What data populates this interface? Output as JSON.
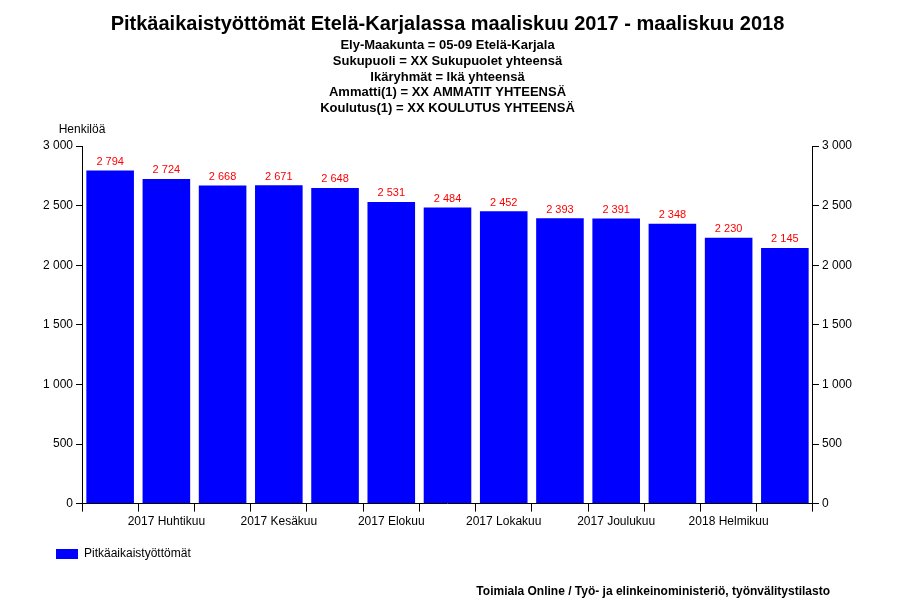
{
  "chart_data": {
    "type": "bar",
    "title": "Pitkäaikaistyöttömät Etelä-Karjalassa maaliskuu 2017 - maaliskuu 2018",
    "subtitle": [
      "Ely-Maakunta = 05-09 Etelä-Karjala",
      "Sukupuoli = XX Sukupuolet yhteensä",
      "Ikäryhmät = Ikä yhteensä",
      "Ammatti(1) = XX AMMATIT YHTEENSÄ",
      "Koulutus(1) = XX KOULUTUS YHTEENSÄ"
    ],
    "y_label": "Henkilöä",
    "source": "Toimiala Online / Työ- ja elinkeinoministeriö, työnvälitystilasto",
    "categories": [
      null,
      "2017 Huhtikuu",
      null,
      "2017 Kesäkuu",
      null,
      "2017 Elokuu",
      null,
      "2017 Lokakuu",
      null,
      "2017 Joulukuu",
      null,
      "2018 Helmikuu",
      null
    ],
    "series": [
      {
        "name": "Pitkäaikaistyöttömät",
        "color": "#0000ff",
        "values": [
          2794,
          2724,
          2668,
          2671,
          2648,
          2531,
          2484,
          2452,
          2393,
          2391,
          2348,
          2230,
          2145
        ],
        "value_labels": [
          "2 794",
          "2 724",
          "2 668",
          "2 671",
          "2 648",
          "2 531",
          "2 484",
          "2 452",
          "2 393",
          "2 391",
          "2 348",
          "2 230",
          "2 145"
        ]
      }
    ],
    "ylim": [
      0,
      3000
    ],
    "yticks": [
      0,
      500,
      {
        "value": 1000,
        "label": "1 000"
      },
      {
        "value": 1500,
        "label": "1 500"
      },
      {
        "value": 2000,
        "label": "2 000"
      },
      {
        "value": 2500,
        "label": "2 500"
      },
      {
        "value": 3000,
        "label": "3 000"
      }
    ],
    "y2lim": [
      0,
      3000
    ],
    "y2ticks": [
      0,
      500,
      {
        "value": 1000,
        "label": "1 000"
      },
      {
        "value": 1500,
        "label": "1 500"
      },
      {
        "value": 2000,
        "label": "2 000"
      },
      {
        "value": 2500,
        "label": "2 500"
      },
      {
        "value": 3000,
        "label": "3 000"
      }
    ],
    "grid": false,
    "legend": "lower left",
    "data_labels": true
  }
}
